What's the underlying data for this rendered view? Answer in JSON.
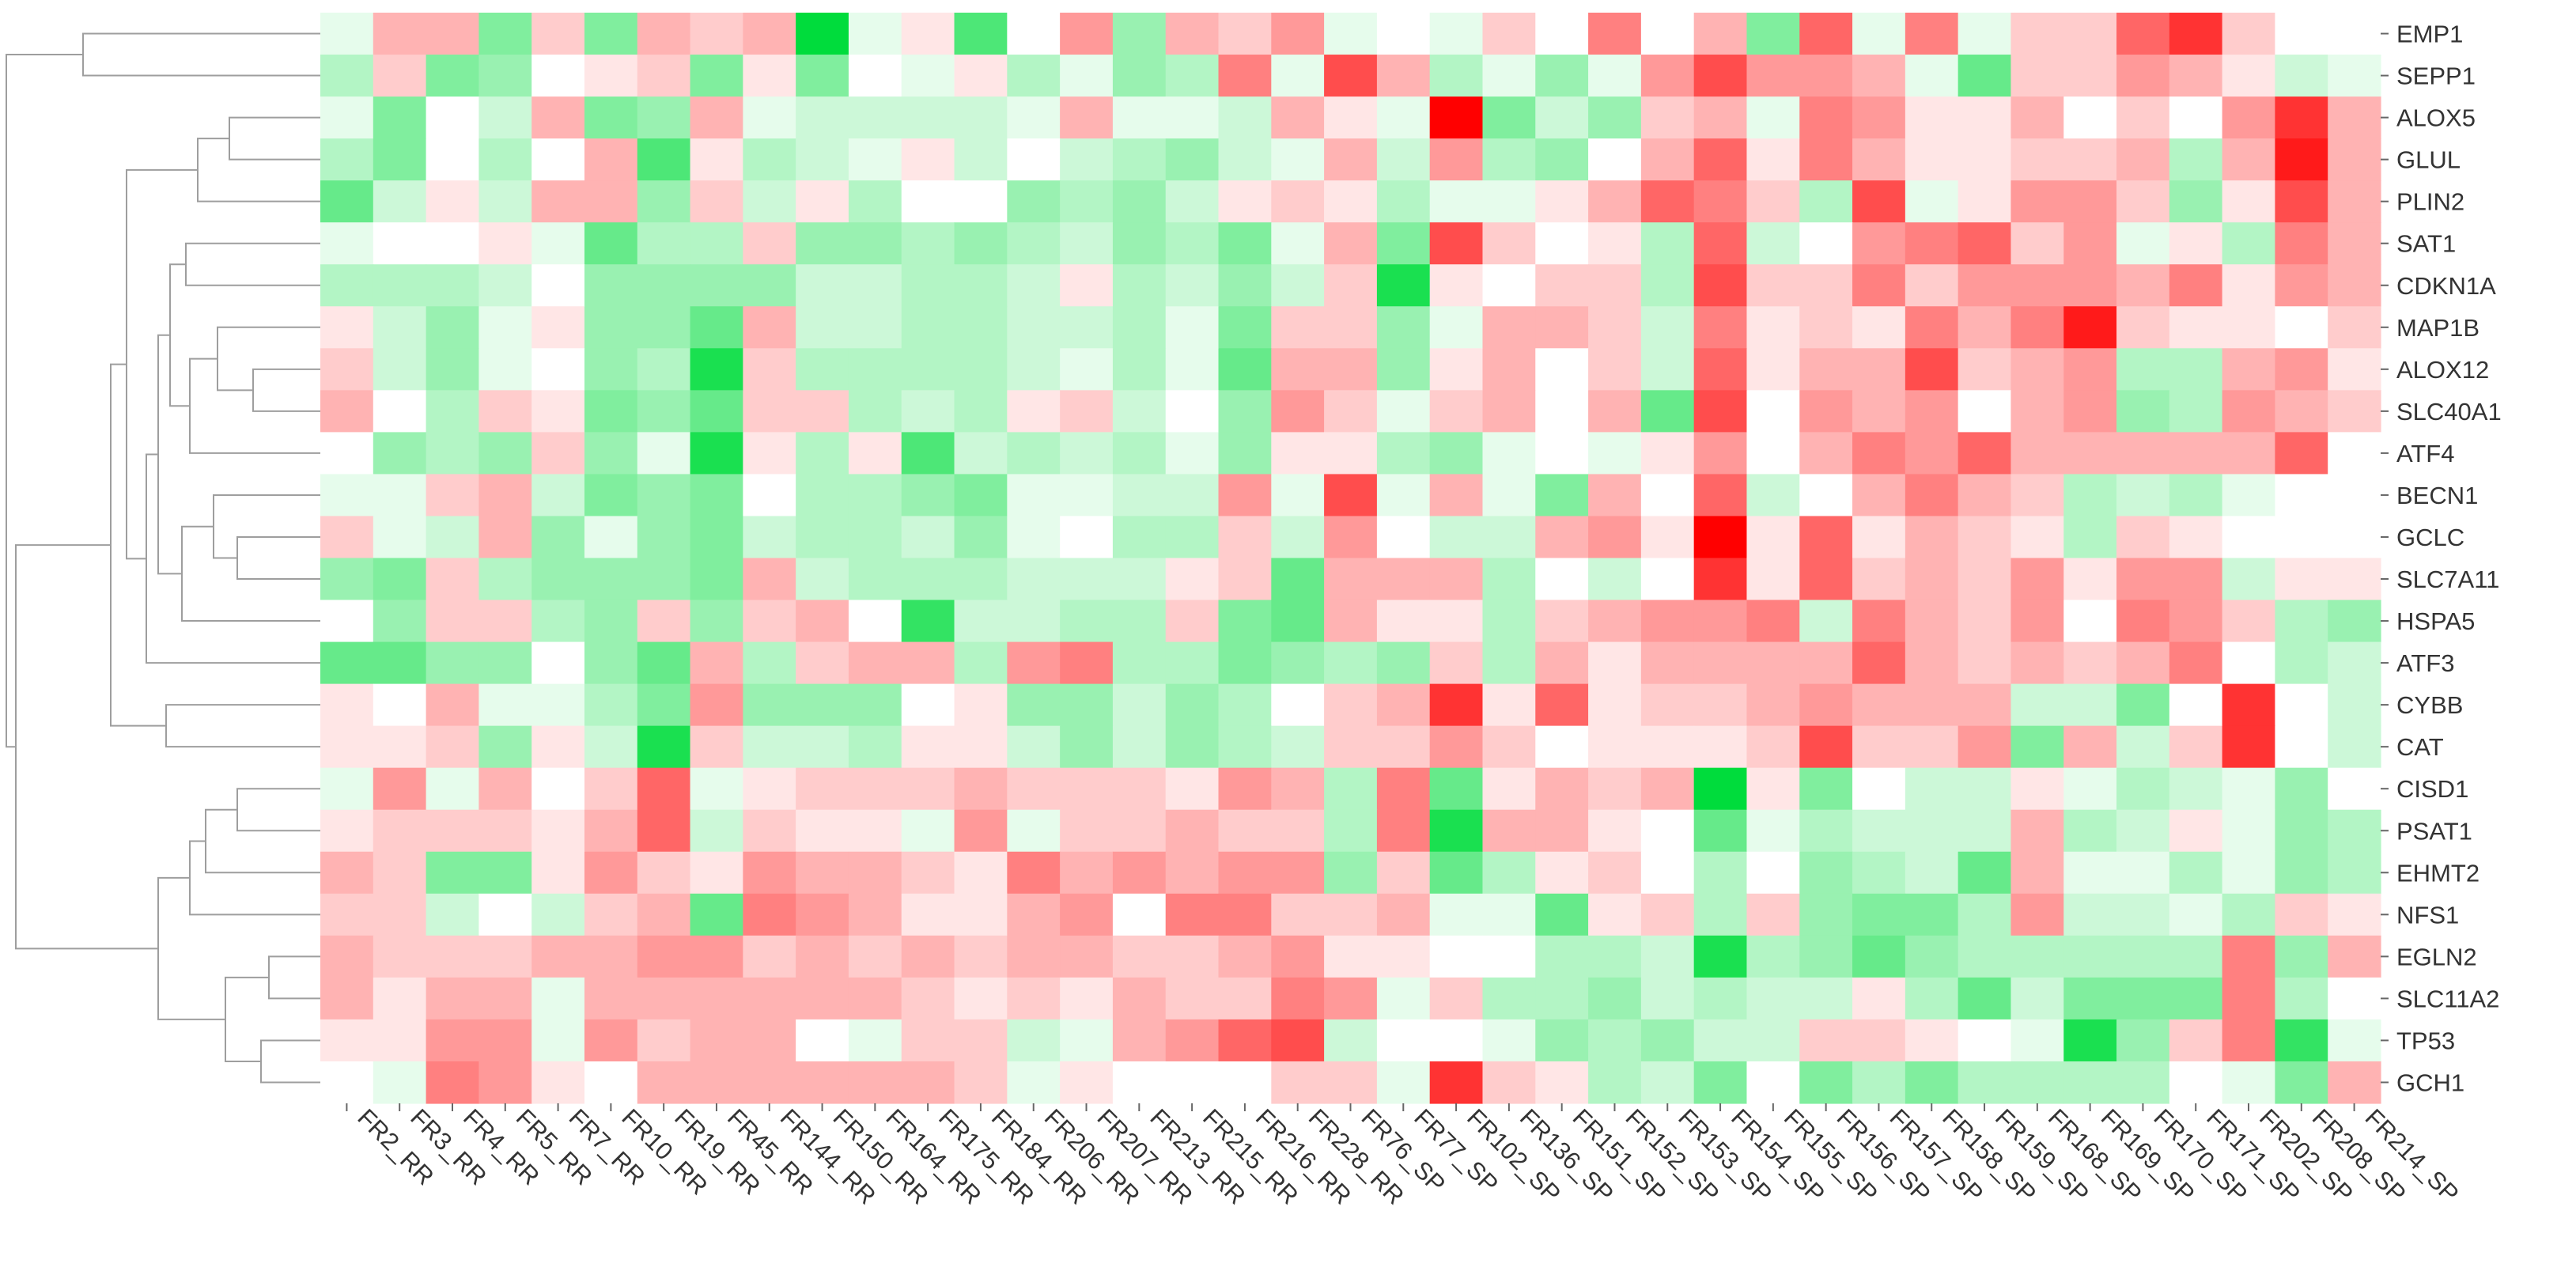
{
  "chart_data": {
    "type": "heatmap",
    "title": "",
    "xlabel": "",
    "ylabel": "",
    "columns": [
      "FR2_RR",
      "FR3_RR",
      "FR4_RR",
      "FR5_RR",
      "FR7_RR",
      "FR10_RR",
      "FR19_RR",
      "FR45_RR",
      "FR144_RR",
      "FR150_RR",
      "FR164_RR",
      "FR175_RR",
      "FR184_RR",
      "FR206_RR",
      "FR207_RR",
      "FR213_RR",
      "FR215_RR",
      "FR216_RR",
      "FR228_RR",
      "FR76_SP",
      "FR77_SP",
      "FR102_SP",
      "FR136_SP",
      "FR151_SP",
      "FR152_SP",
      "FR153_SP",
      "FR154_SP",
      "FR155_SP",
      "FR156_SP",
      "FR157_SP",
      "FR158_SP",
      "FR159_SP",
      "FR168_SP",
      "FR169_SP",
      "FR170_SP",
      "FR171_SP",
      "FR202_SP",
      "FR208_SP",
      "FR214_SP"
    ],
    "rows": [
      "EMP1",
      "SEPP1",
      "ALOX5",
      "GLUL",
      "PLIN2",
      "SAT1",
      "CDKN1A",
      "MAP1B",
      "ALOX12",
      "SLC40A1",
      "ATF4",
      "BECN1",
      "GCLC",
      "SLC7A11",
      "HSPA5",
      "ATF3",
      "CYBB",
      "CAT",
      "CISD1",
      "PSAT1",
      "EHMT2",
      "NFS1",
      "EGLN2",
      "SLC11A2",
      "TP53",
      "GCH1"
    ],
    "value_range": [
      -1,
      1
    ],
    "color_scale": {
      "low": "#00dc3c",
      "mid": "#ffffff",
      "high": "#ff0000"
    },
    "row_dendrogram": true,
    "values": [
      [
        -0.1,
        0.3,
        0.3,
        -0.5,
        0.2,
        -0.5,
        0.3,
        0.2,
        0.3,
        -1,
        -0.1,
        0.1,
        -0.7,
        0,
        0.4,
        -0.4,
        0.3,
        0.2,
        0.4,
        -0.1,
        0,
        -0.1,
        0.2,
        0,
        0.5,
        0,
        0.3,
        -0.5,
        0.6,
        -0.1,
        0.5,
        -0.1,
        0.2,
        0.2,
        0.6,
        0.8,
        0.2,
        0,
        0
      ],
      [
        -0.3,
        0.2,
        -0.5,
        -0.4,
        0,
        0.1,
        0.2,
        -0.5,
        0.1,
        -0.5,
        0,
        -0.1,
        0.1,
        -0.3,
        -0.1,
        -0.4,
        -0.3,
        0.5,
        -0.1,
        0.7,
        0.3,
        -0.3,
        -0.1,
        -0.4,
        -0.1,
        0.4,
        0.7,
        0.4,
        0.4,
        0.3,
        -0.1,
        -0.6,
        0.2,
        0.2,
        0.4,
        0.3,
        0.1,
        -0.2,
        -0.1
      ],
      [
        -0.1,
        -0.5,
        0,
        -0.2,
        0.3,
        -0.5,
        -0.4,
        0.3,
        -0.1,
        -0.2,
        -0.2,
        -0.2,
        -0.2,
        -0.1,
        0.3,
        -0.1,
        -0.1,
        -0.2,
        0.3,
        0.1,
        -0.1,
        1,
        -0.5,
        -0.2,
        -0.4,
        0.2,
        0.3,
        -0.1,
        0.5,
        0.4,
        0.1,
        0.1,
        0.3,
        0,
        0.2,
        0,
        0.4,
        0.8,
        0.3
      ],
      [
        -0.3,
        -0.5,
        0,
        -0.3,
        0,
        0.3,
        -0.7,
        0.1,
        -0.3,
        -0.2,
        -0.1,
        0.1,
        -0.2,
        0,
        -0.2,
        -0.3,
        -0.4,
        -0.2,
        -0.1,
        0.3,
        -0.2,
        0.4,
        -0.3,
        -0.4,
        0,
        0.3,
        0.6,
        0.1,
        0.5,
        0.3,
        0.1,
        0.1,
        0.2,
        0.2,
        0.3,
        -0.3,
        0.3,
        0.9,
        0.3
      ],
      [
        -0.6,
        -0.2,
        0.1,
        -0.2,
        0.3,
        0.3,
        -0.4,
        0.2,
        -0.2,
        0.1,
        -0.3,
        0,
        0,
        -0.4,
        -0.3,
        -0.4,
        -0.2,
        0.1,
        0.2,
        0.1,
        -0.3,
        -0.1,
        -0.1,
        0.1,
        0.3,
        0.6,
        0.5,
        0.2,
        -0.3,
        0.7,
        -0.1,
        0.1,
        0.4,
        0.4,
        0.2,
        -0.4,
        0.1,
        0.7,
        0.3
      ],
      [
        -0.1,
        0,
        0,
        0.1,
        -0.1,
        -0.6,
        -0.3,
        -0.3,
        0.2,
        -0.4,
        -0.4,
        -0.3,
        -0.4,
        -0.3,
        -0.2,
        -0.4,
        -0.3,
        -0.5,
        -0.1,
        0.3,
        -0.5,
        0.7,
        0.2,
        0,
        0.1,
        -0.3,
        0.6,
        -0.2,
        0,
        0.4,
        0.5,
        0.6,
        0.2,
        0.4,
        -0.1,
        0.1,
        -0.3,
        0.5,
        0.3
      ],
      [
        -0.3,
        -0.3,
        -0.3,
        -0.2,
        0,
        -0.4,
        -0.4,
        -0.4,
        -0.4,
        -0.2,
        -0.2,
        -0.3,
        -0.3,
        -0.2,
        0.1,
        -0.3,
        -0.2,
        -0.4,
        -0.2,
        0.2,
        -0.9,
        0.1,
        0,
        0.2,
        0.2,
        -0.3,
        0.7,
        0.2,
        0.2,
        0.5,
        0.2,
        0.4,
        0.4,
        0.4,
        0.3,
        0.5,
        0.1,
        0.4,
        0.3
      ],
      [
        0.1,
        -0.2,
        -0.4,
        -0.1,
        0.1,
        -0.4,
        -0.4,
        -0.6,
        0.3,
        -0.2,
        -0.2,
        -0.3,
        -0.3,
        -0.2,
        -0.2,
        -0.3,
        -0.1,
        -0.5,
        0.2,
        0.2,
        -0.4,
        -0.1,
        0.3,
        0.3,
        0.2,
        -0.2,
        0.5,
        0.1,
        0.2,
        0.1,
        0.5,
        0.3,
        0.5,
        0.9,
        0.2,
        0.1,
        0.1,
        0,
        0.2
      ],
      [
        0.2,
        -0.2,
        -0.4,
        -0.1,
        0,
        -0.4,
        -0.3,
        -0.9,
        0.2,
        -0.3,
        -0.3,
        -0.3,
        -0.3,
        -0.2,
        -0.1,
        -0.3,
        -0.1,
        -0.6,
        0.3,
        0.3,
        -0.4,
        0.1,
        0.3,
        0,
        0.2,
        -0.2,
        0.6,
        0.1,
        0.3,
        0.3,
        0.7,
        0.2,
        0.3,
        0.4,
        -0.3,
        -0.3,
        0.3,
        0.4,
        0.1
      ],
      [
        0.3,
        0,
        -0.3,
        0.2,
        0.1,
        -0.5,
        -0.4,
        -0.6,
        0.2,
        0.2,
        -0.3,
        -0.2,
        -0.3,
        0.1,
        0.2,
        -0.2,
        0,
        -0.4,
        0.4,
        0.2,
        -0.1,
        0.2,
        0.3,
        0,
        0.3,
        -0.6,
        0.7,
        0,
        0.4,
        0.3,
        0.4,
        0,
        0.3,
        0.4,
        -0.4,
        -0.3,
        0.4,
        0.3,
        0.2
      ],
      [
        0,
        -0.4,
        -0.3,
        -0.4,
        0.2,
        -0.4,
        -0.1,
        -0.9,
        0.1,
        -0.3,
        0.1,
        -0.7,
        -0.2,
        -0.3,
        -0.2,
        -0.3,
        -0.1,
        -0.4,
        0.1,
        0.1,
        -0.3,
        -0.4,
        -0.1,
        0,
        -0.1,
        0.1,
        0.4,
        0,
        0.3,
        0.5,
        0.4,
        0.6,
        0.3,
        0.3,
        0.3,
        0.3,
        0.3,
        0.6,
        0
      ],
      [
        -0.1,
        -0.1,
        0.2,
        0.3,
        -0.2,
        -0.5,
        -0.4,
        -0.5,
        0,
        -0.3,
        -0.3,
        -0.4,
        -0.5,
        -0.1,
        -0.1,
        -0.2,
        -0.2,
        0.4,
        -0.1,
        0.7,
        -0.1,
        0.3,
        -0.1,
        -0.5,
        0.3,
        0,
        0.6,
        -0.2,
        0,
        0.3,
        0.5,
        0.3,
        0.2,
        -0.3,
        -0.2,
        -0.3,
        -0.1,
        0,
        0
      ],
      [
        0.2,
        -0.1,
        -0.2,
        0.3,
        -0.4,
        -0.1,
        -0.4,
        -0.5,
        -0.2,
        -0.3,
        -0.3,
        -0.2,
        -0.4,
        -0.1,
        0,
        -0.3,
        -0.3,
        0.2,
        -0.2,
        0.4,
        0,
        -0.2,
        -0.2,
        0.3,
        0.4,
        0.1,
        1,
        0.1,
        0.6,
        0.1,
        0.3,
        0.2,
        0.1,
        -0.3,
        0.2,
        0.1,
        0,
        0,
        0
      ],
      [
        -0.4,
        -0.5,
        0.2,
        -0.3,
        -0.4,
        -0.4,
        -0.4,
        -0.5,
        0.3,
        -0.2,
        -0.3,
        -0.3,
        -0.3,
        -0.2,
        -0.2,
        -0.2,
        0.1,
        0.2,
        -0.6,
        0.3,
        0.3,
        0.3,
        -0.3,
        0,
        -0.2,
        0,
        0.8,
        0.1,
        0.6,
        0.2,
        0.3,
        0.2,
        0.4,
        0.1,
        0.4,
        0.4,
        -0.2,
        0.1,
        0.1
      ],
      [
        0,
        -0.4,
        0.2,
        0.2,
        -0.3,
        -0.4,
        0.2,
        -0.4,
        0.2,
        0.3,
        0,
        -0.8,
        -0.2,
        -0.2,
        -0.3,
        -0.3,
        0.2,
        -0.5,
        -0.6,
        0.3,
        0.1,
        0.1,
        -0.3,
        0.2,
        0.3,
        0.4,
        0.4,
        0.5,
        -0.2,
        0.5,
        0.3,
        0.2,
        0.4,
        0,
        0.5,
        0.4,
        0.2,
        -0.3,
        -0.4
      ],
      [
        -0.6,
        -0.6,
        -0.4,
        -0.4,
        0,
        -0.4,
        -0.6,
        0.3,
        -0.3,
        0.2,
        0.3,
        0.3,
        -0.3,
        0.4,
        0.5,
        -0.3,
        -0.3,
        -0.5,
        -0.4,
        -0.3,
        -0.4,
        0.2,
        -0.3,
        0.3,
        0.1,
        0.3,
        0.3,
        0.3,
        0.3,
        0.6,
        0.3,
        0.2,
        0.3,
        0.2,
        0.3,
        0.5,
        0,
        -0.3,
        -0.2
      ],
      [
        0.1,
        0,
        0.3,
        -0.1,
        -0.1,
        -0.3,
        -0.5,
        0.4,
        -0.4,
        -0.4,
        -0.4,
        0,
        0.1,
        -0.4,
        -0.4,
        -0.2,
        -0.4,
        -0.3,
        0,
        0.2,
        0.3,
        0.8,
        0.1,
        0.6,
        0.1,
        0.2,
        0.2,
        0.3,
        0.4,
        0.3,
        0.3,
        0.3,
        -0.2,
        -0.2,
        -0.5,
        0,
        0.8,
        0,
        -0.2
      ],
      [
        0.1,
        0.1,
        0.2,
        -0.4,
        0.1,
        -0.2,
        -0.9,
        0.2,
        -0.2,
        -0.2,
        -0.3,
        0.1,
        0.1,
        -0.2,
        -0.4,
        -0.2,
        -0.4,
        -0.3,
        -0.2,
        0.2,
        0.2,
        0.4,
        0.2,
        0,
        0.1,
        0.1,
        0.1,
        0.2,
        0.7,
        0.2,
        0.2,
        0.4,
        -0.5,
        0.3,
        -0.2,
        0.2,
        0.8,
        0,
        -0.2
      ],
      [
        -0.1,
        0.4,
        -0.1,
        0.3,
        0,
        0.2,
        0.6,
        -0.1,
        0.1,
        0.2,
        0.2,
        0.2,
        0.3,
        0.2,
        0.2,
        0.2,
        0.1,
        0.4,
        0.3,
        -0.3,
        0.5,
        -0.6,
        0.1,
        0.3,
        0.2,
        0.3,
        -1,
        0.1,
        -0.5,
        0,
        -0.2,
        -0.2,
        0.1,
        -0.1,
        -0.3,
        -0.2,
        -0.1,
        -0.4,
        0
      ],
      [
        0.1,
        0.2,
        0.2,
        0.2,
        0.1,
        0.3,
        0.6,
        -0.2,
        0.2,
        0.1,
        0.1,
        -0.1,
        0.4,
        -0.1,
        0.2,
        0.2,
        0.3,
        0.2,
        0.2,
        -0.3,
        0.5,
        -0.9,
        0.3,
        0.3,
        0.1,
        0,
        -0.6,
        -0.1,
        -0.3,
        -0.2,
        -0.2,
        -0.2,
        0.3,
        -0.3,
        -0.2,
        0.1,
        -0.1,
        -0.4,
        -0.3
      ],
      [
        0.3,
        0.2,
        -0.5,
        -0.5,
        0.1,
        0.4,
        0.2,
        0.1,
        0.4,
        0.3,
        0.3,
        0.2,
        0.1,
        0.5,
        0.3,
        0.4,
        0.3,
        0.4,
        0.4,
        -0.4,
        0.2,
        -0.6,
        -0.3,
        0.1,
        0.2,
        0,
        -0.3,
        0,
        -0.4,
        -0.3,
        -0.2,
        -0.6,
        0.3,
        -0.1,
        -0.1,
        -0.3,
        -0.1,
        -0.4,
        -0.3
      ],
      [
        0.2,
        0.2,
        -0.2,
        0,
        -0.2,
        0.2,
        0.3,
        -0.6,
        0.5,
        0.4,
        0.3,
        0.1,
        0.1,
        0.3,
        0.4,
        0,
        0.5,
        0.5,
        0.2,
        0.2,
        0.3,
        -0.1,
        -0.1,
        -0.6,
        0.1,
        0.2,
        -0.3,
        0.2,
        -0.4,
        -0.5,
        -0.5,
        -0.3,
        0.4,
        -0.2,
        -0.2,
        -0.1,
        -0.3,
        0.2,
        0.1
      ],
      [
        0.3,
        0.2,
        0.2,
        0.2,
        0.3,
        0.3,
        0.4,
        0.4,
        0.2,
        0.3,
        0.2,
        0.3,
        0.2,
        0.3,
        0.3,
        0.2,
        0.2,
        0.3,
        0.4,
        0.1,
        0.1,
        0,
        0,
        -0.3,
        -0.3,
        -0.2,
        -0.9,
        -0.3,
        -0.4,
        -0.6,
        -0.4,
        -0.3,
        -0.3,
        -0.3,
        -0.3,
        -0.3,
        0.5,
        -0.4,
        0.3
      ],
      [
        0.3,
        0.1,
        0.3,
        0.3,
        -0.1,
        0.3,
        0.3,
        0.3,
        0.3,
        0.3,
        0.3,
        0.2,
        0.1,
        0.2,
        0.1,
        0.3,
        0.2,
        0.2,
        0.5,
        0.4,
        -0.1,
        0.2,
        -0.3,
        -0.3,
        -0.4,
        -0.2,
        -0.3,
        -0.2,
        -0.2,
        0.1,
        -0.3,
        -0.6,
        -0.2,
        -0.5,
        -0.5,
        -0.5,
        0.5,
        -0.3,
        0
      ],
      [
        0.1,
        0.1,
        0.4,
        0.4,
        -0.1,
        0.4,
        0.2,
        0.3,
        0.3,
        0,
        -0.1,
        0.2,
        0.2,
        -0.2,
        -0.1,
        0.3,
        0.4,
        0.6,
        0.7,
        -0.2,
        0,
        0,
        -0.1,
        -0.4,
        -0.3,
        -0.4,
        -0.2,
        -0.2,
        0.2,
        0.2,
        0.1,
        0,
        -0.1,
        -0.9,
        -0.4,
        0.2,
        0.5,
        -0.8,
        -0.1
      ],
      [
        0,
        -0.1,
        0.5,
        0.4,
        0.1,
        0,
        0.3,
        0.3,
        0.3,
        0.3,
        0.3,
        0.3,
        0.2,
        -0.1,
        0.1,
        0,
        0,
        0,
        0.2,
        0.2,
        -0.1,
        0.8,
        0.2,
        0.1,
        -0.3,
        -0.2,
        -0.5,
        0,
        -0.5,
        -0.3,
        -0.5,
        -0.3,
        -0.3,
        -0.3,
        -0.3,
        0,
        -0.1,
        -0.5,
        0.3
      ]
    ]
  }
}
